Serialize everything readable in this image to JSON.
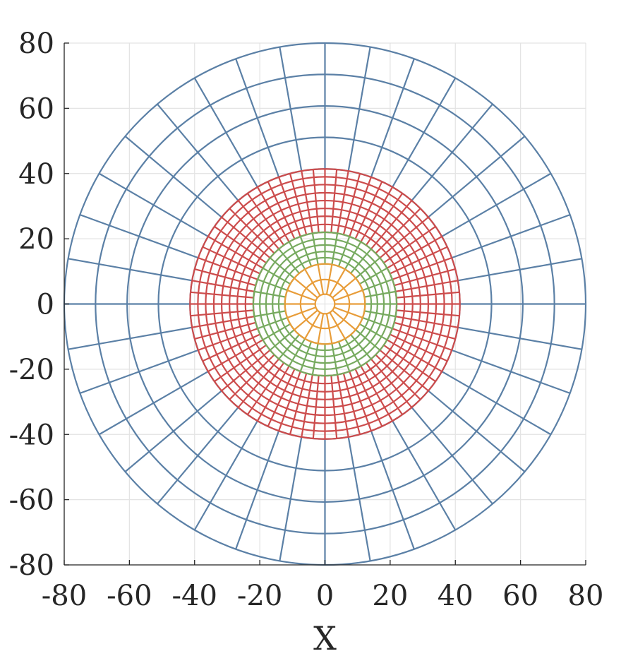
{
  "chart_data": {
    "type": "line",
    "description_of_marks": "concentric polar grid zones (rings and radial spokes)",
    "title": "",
    "xlabel": "X",
    "ylabel": "",
    "xlim": [
      -80,
      80
    ],
    "ylim": [
      -80,
      80
    ],
    "xticks": [
      -80,
      -60,
      -40,
      -20,
      0,
      20,
      40,
      60,
      80
    ],
    "yticks": [
      -80,
      -60,
      -40,
      -20,
      0,
      20,
      40,
      60,
      80
    ],
    "grid": true,
    "legend": "none",
    "series": [
      {
        "color": "#5b80a6",
        "rings": [
          41.4,
          51.1,
          60.7,
          70.4,
          80
        ],
        "spokes": 36,
        "spoke_range": [
          41.4,
          80
        ]
      },
      {
        "color": "#cc4c4c",
        "rings": [
          22,
          24.4,
          26.9,
          29.3,
          31.7,
          34.1,
          36.6,
          39,
          41.4
        ],
        "spokes": 72,
        "spoke_range": [
          22,
          41.4
        ]
      },
      {
        "color": "#77aa5f",
        "rings": [
          12.3,
          14.2,
          16.1,
          18.1,
          20,
          22
        ],
        "spokes": 36,
        "spoke_range": [
          12.3,
          22
        ]
      },
      {
        "color": "#e89d3a",
        "rings": [
          3,
          7.5,
          12.3
        ],
        "spokes": 18,
        "spoke_range": [
          3,
          12.3
        ]
      }
    ]
  }
}
